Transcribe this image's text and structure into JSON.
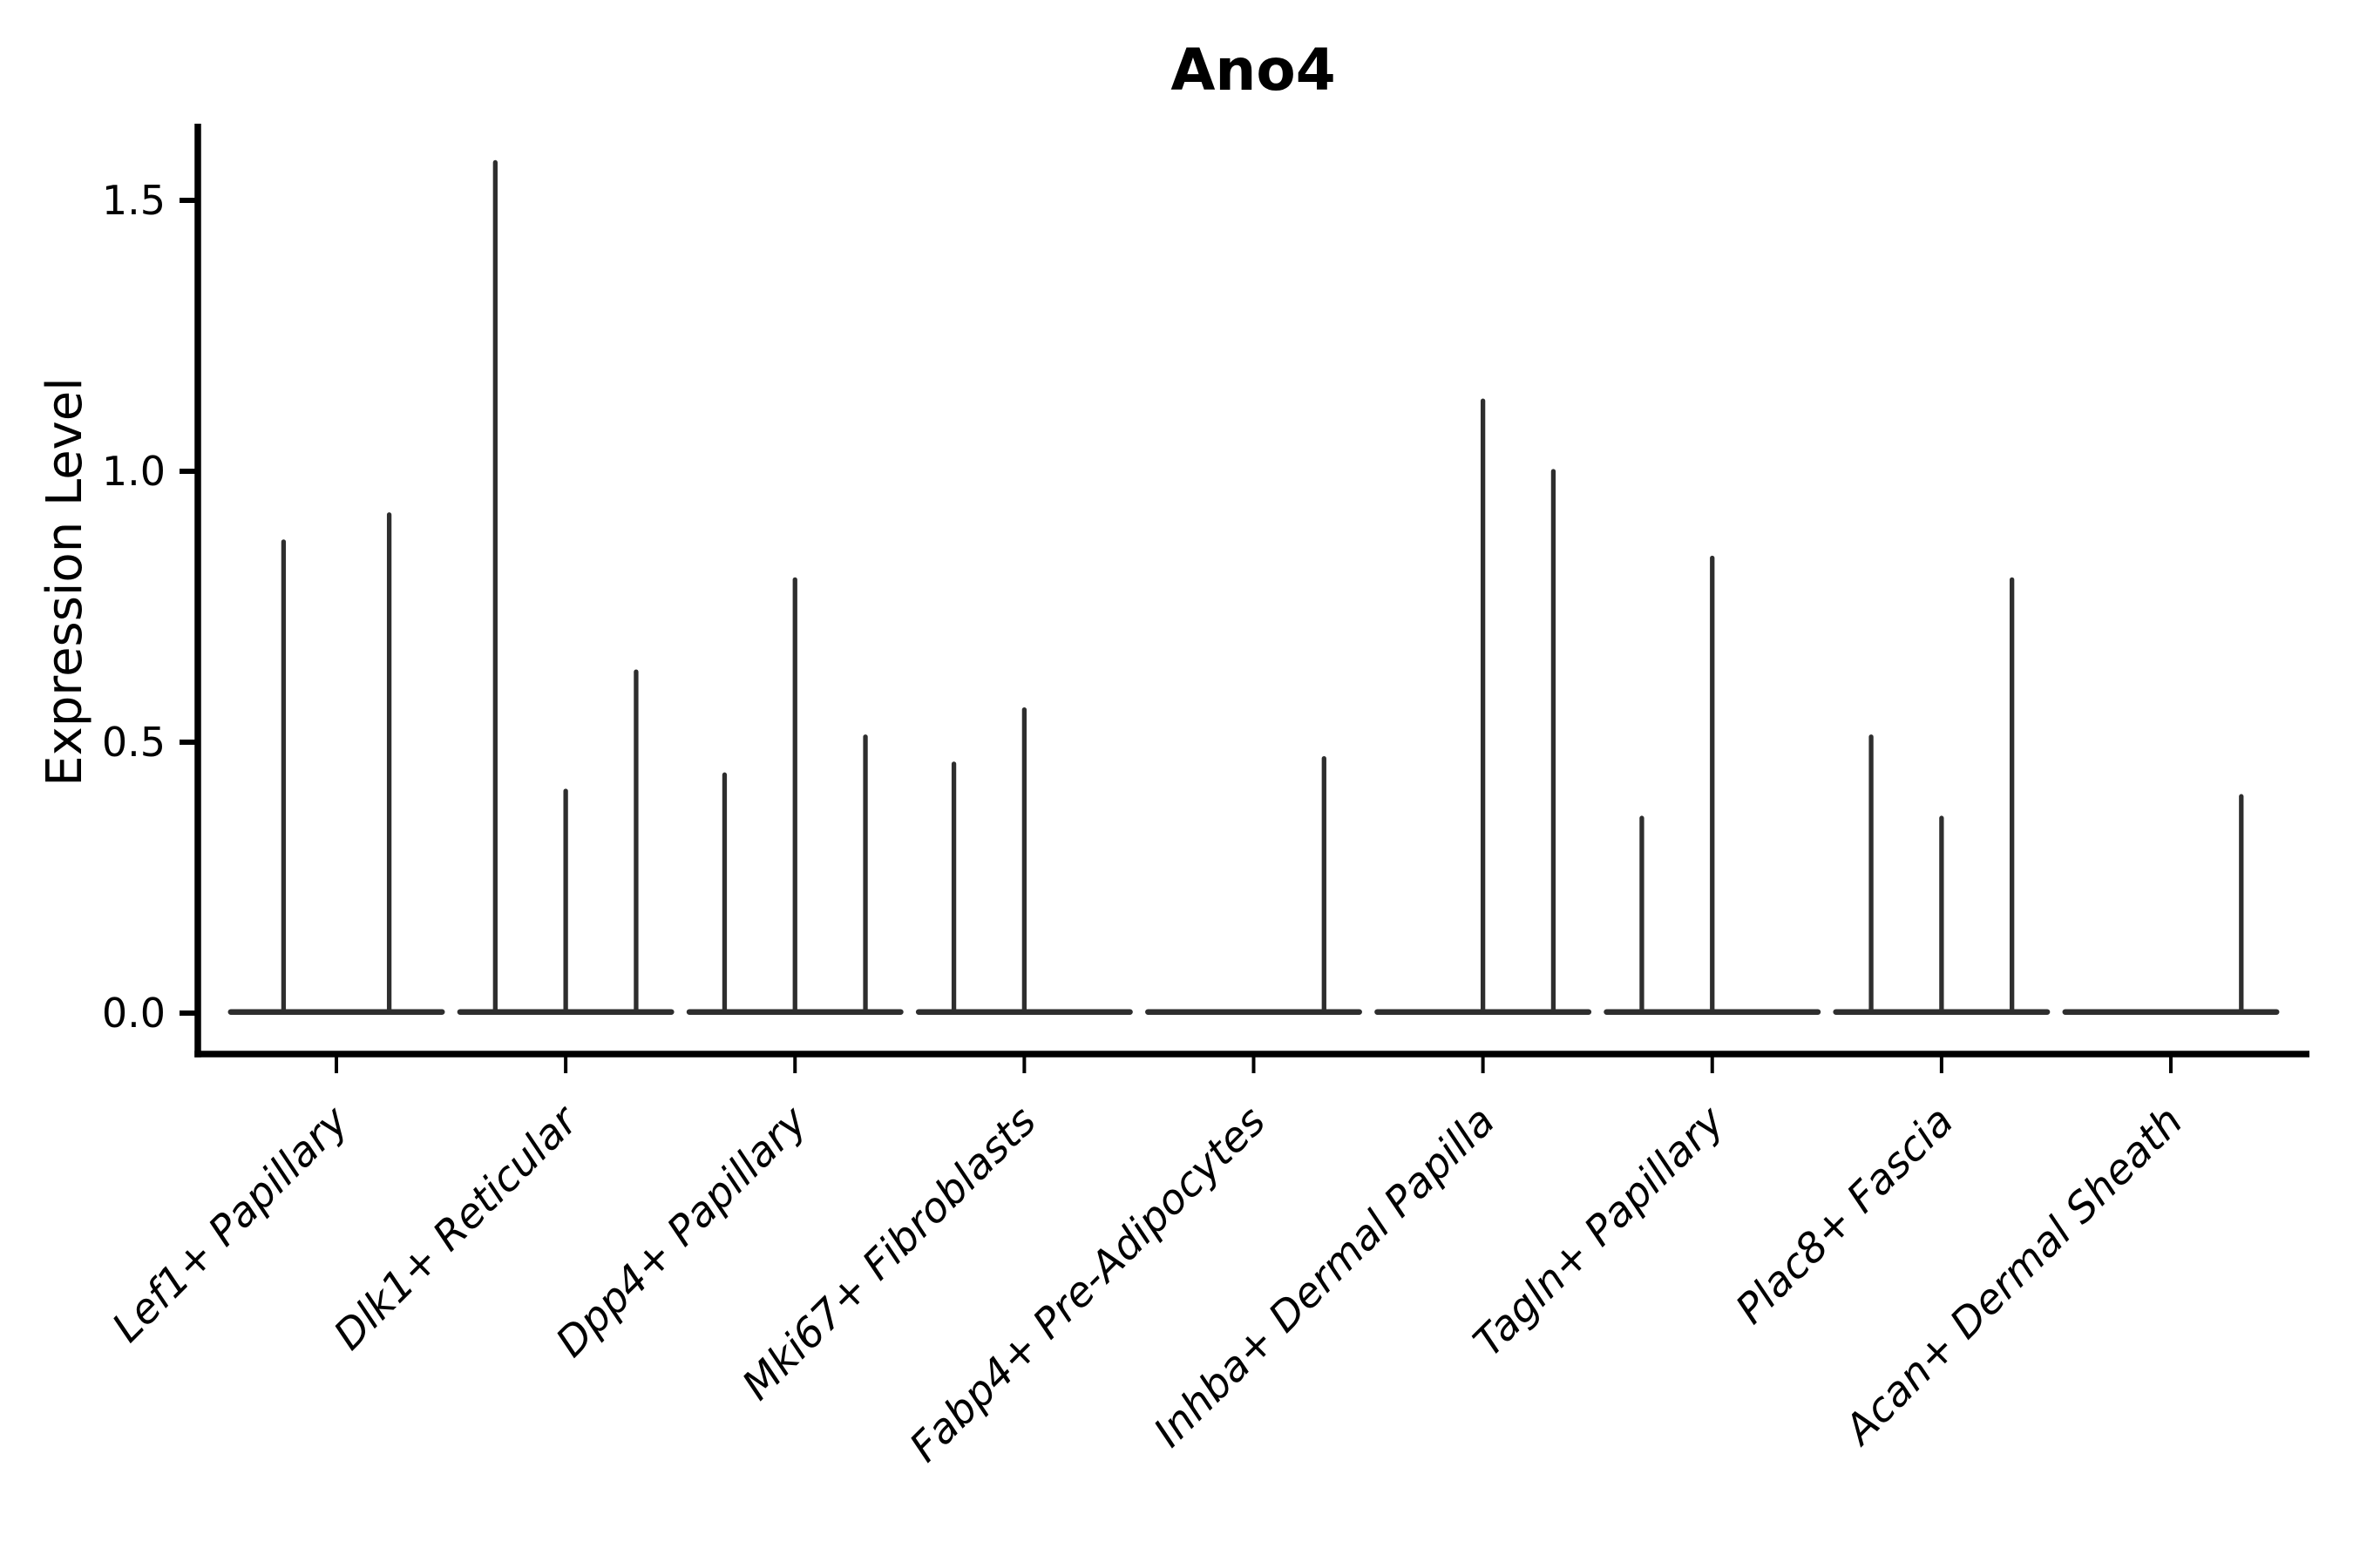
{
  "figure": {
    "title": "Ano4",
    "y_axis_label": "Expression Level",
    "background_color": "#ffffff"
  },
  "chart_data": {
    "type": "violin",
    "title": "Ano4",
    "ylabel": "Expression Level",
    "xlabel": "",
    "grid": false,
    "legend_position": "none",
    "y_ticks": [
      "0.0",
      "0.5",
      "1.0",
      "1.5"
    ],
    "ylim": [
      -0.08,
      1.64
    ],
    "axis_color": "#000000",
    "violin_color": "#2e2e2e",
    "description": "Collapsed violins (all mass at 0) drawn as flat baselines at y=0 with thin vertical spikes marking expressing sub-violin positions",
    "categories": [
      {
        "label": "Lef1+ Papillary",
        "groups": 2,
        "spikes": [
          {
            "slot": 0,
            "value": 0.87
          },
          {
            "slot": 1,
            "value": 0.92
          }
        ]
      },
      {
        "label": "Dlk1+ Reticular",
        "groups": 3,
        "spikes": [
          {
            "slot": 0,
            "value": 1.57
          },
          {
            "slot": 1,
            "value": 0.41
          },
          {
            "slot": 2,
            "value": 0.63
          }
        ]
      },
      {
        "label": "Dpp4+ Papillary",
        "groups": 3,
        "spikes": [
          {
            "slot": 0,
            "value": 0.44
          },
          {
            "slot": 1,
            "value": 0.8
          },
          {
            "slot": 2,
            "value": 0.51
          }
        ]
      },
      {
        "label": "Mki67+ Fibroblasts",
        "groups": 3,
        "spikes": [
          {
            "slot": 0,
            "value": 0.46
          },
          {
            "slot": 1,
            "value": 0.56
          }
        ]
      },
      {
        "label": "Fabp4+ Pre-Adipocytes",
        "groups": 3,
        "spikes": [
          {
            "slot": 2,
            "value": 0.47
          }
        ]
      },
      {
        "label": "Inhba+ Dermal Papilla",
        "groups": 3,
        "spikes": [
          {
            "slot": 1,
            "value": 1.13
          },
          {
            "slot": 2,
            "value": 1.0
          }
        ]
      },
      {
        "label": "Tagln+ Papillary",
        "groups": 3,
        "spikes": [
          {
            "slot": 0,
            "value": 0.36
          },
          {
            "slot": 1,
            "value": 0.84
          }
        ]
      },
      {
        "label": "Plac8+ Fascia",
        "groups": 3,
        "spikes": [
          {
            "slot": 0,
            "value": 0.51
          },
          {
            "slot": 1,
            "value": 0.36
          },
          {
            "slot": 2,
            "value": 0.8
          }
        ]
      },
      {
        "label": "Acan+ Dermal Sheath",
        "groups": 3,
        "spikes": [
          {
            "slot": 2,
            "value": 0.4
          }
        ]
      }
    ]
  }
}
